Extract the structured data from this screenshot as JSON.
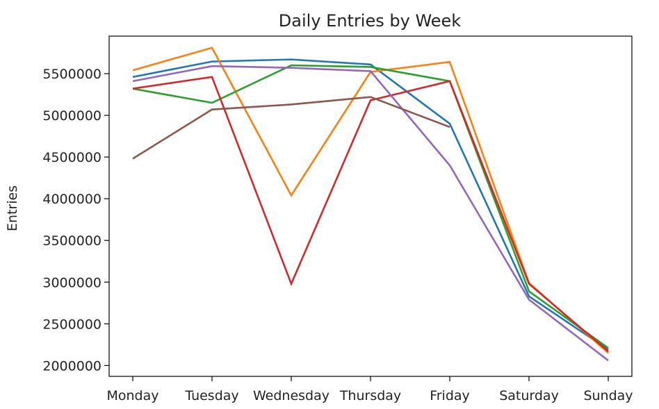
{
  "chart_data": {
    "type": "line",
    "title": "Daily Entries by Week",
    "xlabel": "",
    "ylabel": "Entries",
    "categories": [
      "Monday",
      "Tuesday",
      "Wednesday",
      "Thursday",
      "Friday",
      "Saturday",
      "Sunday"
    ],
    "y_ticks": [
      2000000,
      2500000,
      3000000,
      3500000,
      4000000,
      4500000,
      5000000,
      5500000
    ],
    "ylim": [
      1870000,
      5950000
    ],
    "grid": false,
    "legend": "none",
    "series": [
      {
        "color": "#1f77b4",
        "values": [
          5460000,
          5645000,
          5670000,
          5610000,
          4900000,
          2830000,
          2190000
        ]
      },
      {
        "color": "#ff7f0e",
        "values": [
          5540000,
          5810000,
          4040000,
          5520000,
          5640000,
          2990000,
          2150000
        ]
      },
      {
        "color": "#2ca02c",
        "values": [
          5320000,
          5150000,
          5600000,
          5580000,
          5410000,
          2890000,
          2210000
        ]
      },
      {
        "color": "#d62728",
        "values": [
          5320000,
          5460000,
          2980000,
          5180000,
          5410000,
          2980000,
          2170000
        ]
      },
      {
        "color": "#9467bd",
        "values": [
          5410000,
          5590000,
          5570000,
          5530000,
          4400000,
          2790000,
          2060000
        ]
      },
      {
        "color": "#8c564b",
        "values": [
          4480000,
          5070000,
          5130000,
          5220000,
          4860000,
          null,
          null
        ]
      }
    ]
  }
}
